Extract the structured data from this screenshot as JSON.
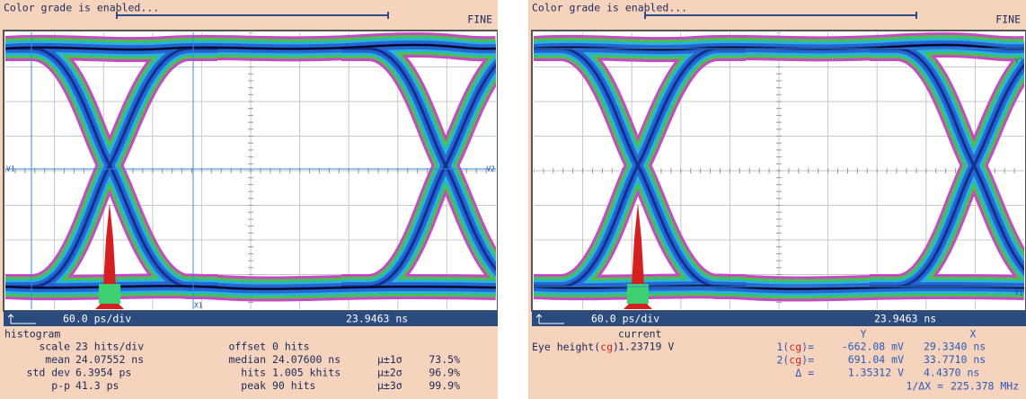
{
  "panels": [
    {
      "status": "Color grade is enabled...",
      "mode": "FINE",
      "timebase": "60.0 ps/div",
      "position": "23.9463 ns",
      "markers": [
        "V1",
        "V2",
        "X1"
      ],
      "histogram": {
        "title": "histogram",
        "rows": [
          [
            "scale",
            "23 hits/div",
            "offset",
            "0 hits"
          ],
          [
            "mean",
            "24.07552 ns",
            "median",
            "24.07600 ns",
            "µ±1σ",
            "73.5%"
          ],
          [
            "std dev",
            "6.3954 ps",
            "hits",
            "1.005 khits",
            "µ±2σ",
            "96.9%"
          ],
          [
            "p-p",
            "41.3 ps",
            "peak",
            "90 hits",
            "µ±3σ",
            "99.9%"
          ]
        ]
      }
    },
    {
      "status": "Color grade is enabled...",
      "mode": "FINE",
      "timebase": "60.0 ps/div",
      "position": "23.9463 ns",
      "markers": [
        "Y1",
        "Y2"
      ],
      "measure": {
        "header": [
          "current",
          "Y",
          "X"
        ],
        "name": {
          "text": "Eye height(",
          "tag": "cg",
          "end": ")"
        },
        "current": "1.23719 V",
        "rows": [
          {
            "label": "1(",
            "tag": "cg",
            "end": ")=",
            "y": "-662.08 mV",
            "x": "29.3340 ns"
          },
          {
            "label": "2(",
            "tag": "cg",
            "end": ")=",
            "y": "691.04 mV",
            "x": "33.7710 ns"
          },
          {
            "label": "Δ =",
            "y": "1.35312 V",
            "x": "4.4370 ns"
          }
        ],
        "freq": [
          "1/ΔX =",
          "225.378 MHz"
        ]
      }
    }
  ]
}
